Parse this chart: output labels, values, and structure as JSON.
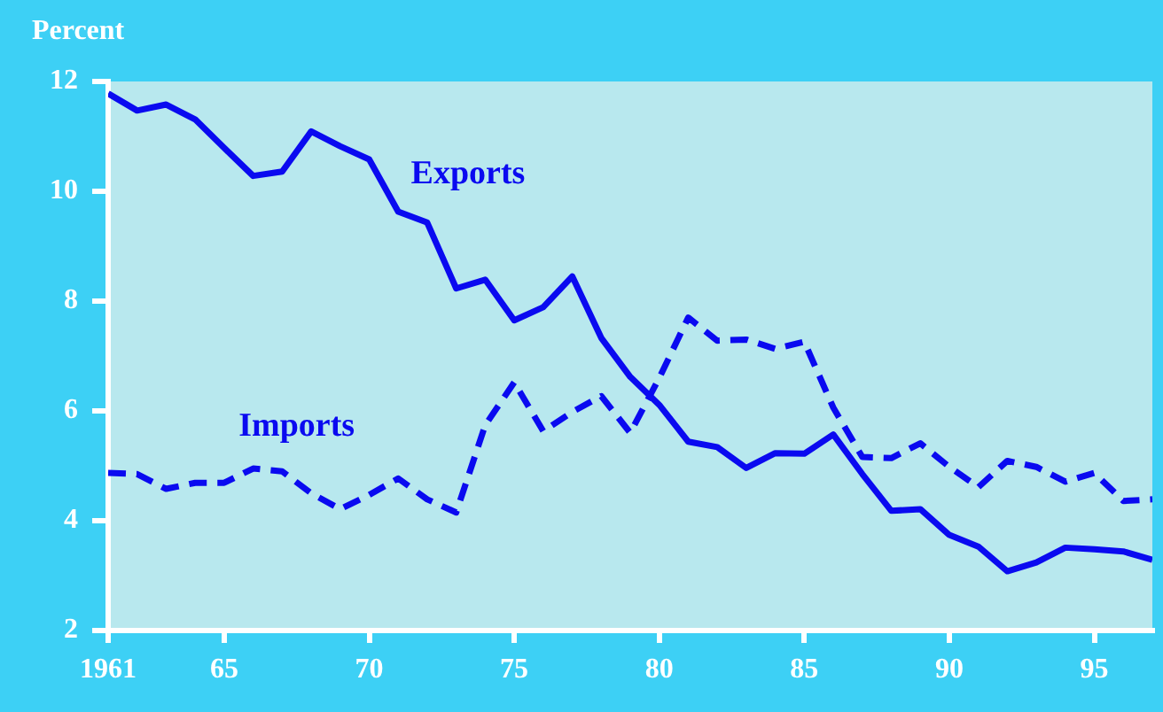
{
  "chart_data": {
    "type": "line",
    "ylabel": "Percent",
    "x": [
      1961,
      1962,
      1963,
      1964,
      1965,
      1966,
      1967,
      1968,
      1969,
      1970,
      1971,
      1972,
      1973,
      1974,
      1975,
      1976,
      1977,
      1978,
      1979,
      1980,
      1981,
      1982,
      1983,
      1984,
      1985,
      1986,
      1987,
      1988,
      1989,
      1990,
      1991,
      1992,
      1993,
      1994,
      1995,
      1996,
      1997
    ],
    "series": [
      {
        "name": "Exports",
        "color": "#0a0af0",
        "line_style": "solid",
        "values": [
          11.78,
          11.47,
          11.58,
          11.31,
          10.79,
          10.28,
          10.36,
          11.09,
          10.82,
          10.58,
          9.63,
          9.43,
          8.23,
          8.39,
          7.65,
          7.89,
          8.45,
          7.33,
          6.62,
          6.11,
          5.44,
          5.34,
          4.96,
          5.23,
          5.22,
          5.57,
          4.85,
          4.18,
          4.21,
          3.74,
          3.53,
          3.08,
          3.24,
          3.51,
          3.48,
          3.44,
          3.29
        ]
      },
      {
        "name": "Imports",
        "color": "#0a0af0",
        "line_style": "dashed",
        "values": [
          4.87,
          4.85,
          4.58,
          4.69,
          4.69,
          4.95,
          4.9,
          4.5,
          4.21,
          4.47,
          4.77,
          4.39,
          4.15,
          5.74,
          6.52,
          5.63,
          5.98,
          6.27,
          5.6,
          6.6,
          7.7,
          7.28,
          7.3,
          7.13,
          7.26,
          6.06,
          5.16,
          5.14,
          5.41,
          4.98,
          4.61,
          5.09,
          4.98,
          4.71,
          4.87,
          4.36,
          4.39
        ]
      }
    ],
    "xlim": [
      1961,
      1997
    ],
    "xticks": [
      1961,
      {
        "value": 1965,
        "label": "65"
      },
      {
        "value": 1970,
        "label": "70"
      },
      {
        "value": 1975,
        "label": "75"
      },
      {
        "value": 1980,
        "label": "80"
      },
      {
        "value": 1985,
        "label": "85"
      },
      {
        "value": 1990,
        "label": "90"
      },
      {
        "value": 1995,
        "label": "95"
      }
    ],
    "ylim": [
      2,
      12
    ],
    "yticks": [
      2,
      4,
      6,
      8,
      10,
      12
    ],
    "grid": false,
    "legend": false,
    "marker": "none"
  }
}
